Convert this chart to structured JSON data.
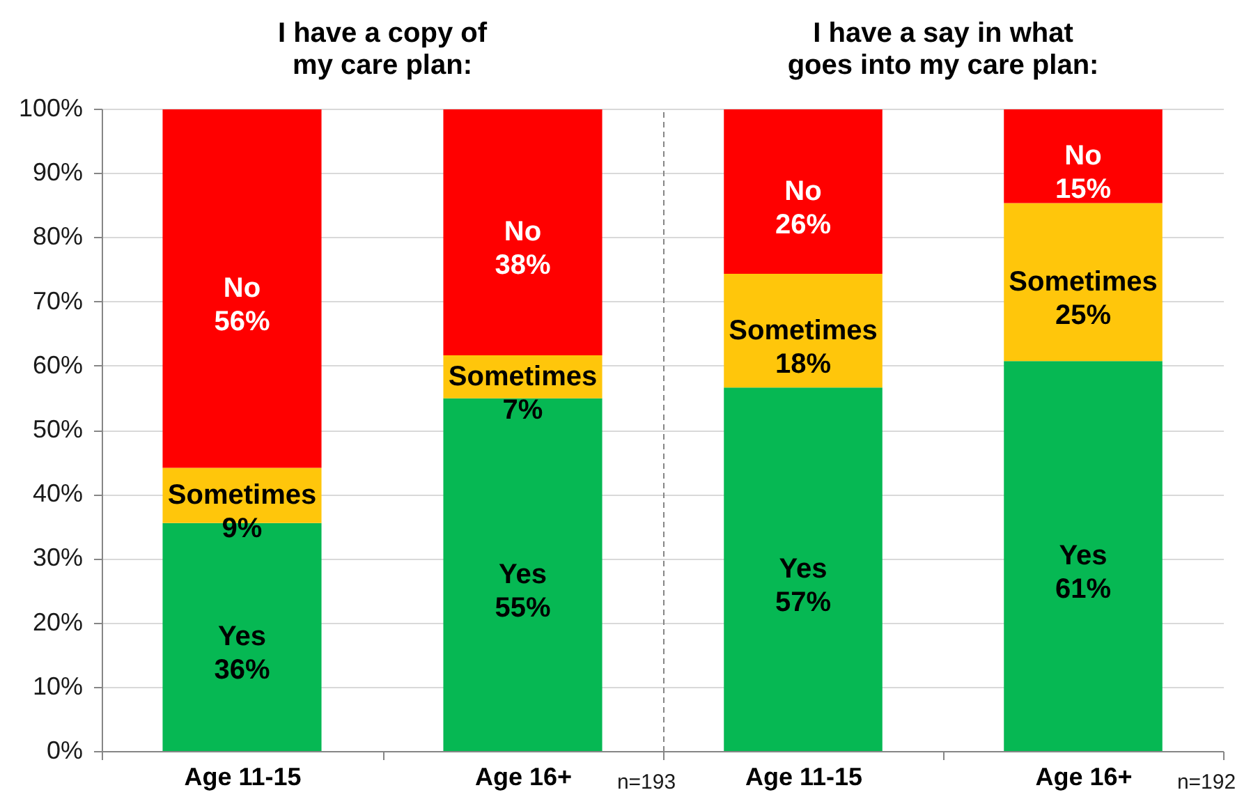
{
  "chart_data": [
    {
      "type": "bar",
      "title": "I have a copy of\nmy care plan:",
      "categories": [
        "Age 11-15",
        "Age 16+"
      ],
      "stacked": true,
      "series": [
        {
          "name": "Yes",
          "color": "#06b853",
          "values": [
            35.5,
            54.9
          ],
          "value_labels": [
            "36%",
            "55%"
          ]
        },
        {
          "name": "Sometimes",
          "color": "#ffc60b",
          "values": [
            8.6,
            6.7
          ],
          "value_labels": [
            "9%",
            "7%"
          ]
        },
        {
          "name": "No",
          "color": "#ff0000",
          "values": [
            55.8,
            38.3
          ],
          "value_labels": [
            "56%",
            "38%"
          ]
        }
      ],
      "ylim": [
        0,
        100
      ],
      "yticks": [
        {
          "value": 0,
          "label": "0%"
        },
        {
          "value": 10,
          "label": "10%"
        },
        {
          "value": 20,
          "label": "20%"
        },
        {
          "value": 30,
          "label": "30%"
        },
        {
          "value": 40,
          "label": "40%"
        },
        {
          "value": 50,
          "label": "50%"
        },
        {
          "value": 60,
          "label": "60%"
        },
        {
          "value": 70,
          "label": "70%"
        },
        {
          "value": 80,
          "label": "80%"
        },
        {
          "value": 90,
          "label": "90%"
        },
        {
          "value": 100,
          "label": "100%"
        }
      ],
      "grid": "y",
      "annotations": [
        "n=193"
      ]
    },
    {
      "type": "bar",
      "title": "I have a say in what\ngoes into my care plan:",
      "categories": [
        "Age 11-15",
        "Age 16+"
      ],
      "stacked": true,
      "series": [
        {
          "name": "Yes",
          "color": "#06b853",
          "values": [
            56.6,
            60.7
          ],
          "value_labels": [
            "57%",
            "61%"
          ]
        },
        {
          "name": "Sometimes",
          "color": "#ffc60b",
          "values": [
            17.7,
            24.6
          ],
          "value_labels": [
            "18%",
            "25%"
          ]
        },
        {
          "name": "No",
          "color": "#ff0000",
          "values": [
            25.6,
            14.6
          ],
          "value_labels": [
            "26%",
            "15%"
          ]
        }
      ],
      "ylim": [
        0,
        100
      ],
      "yticks": [
        0,
        10,
        20,
        30,
        40,
        50,
        60,
        70,
        80,
        90,
        100
      ],
      "grid": "y",
      "tick_labels": "x",
      "annotations": [
        "n=192"
      ]
    }
  ]
}
